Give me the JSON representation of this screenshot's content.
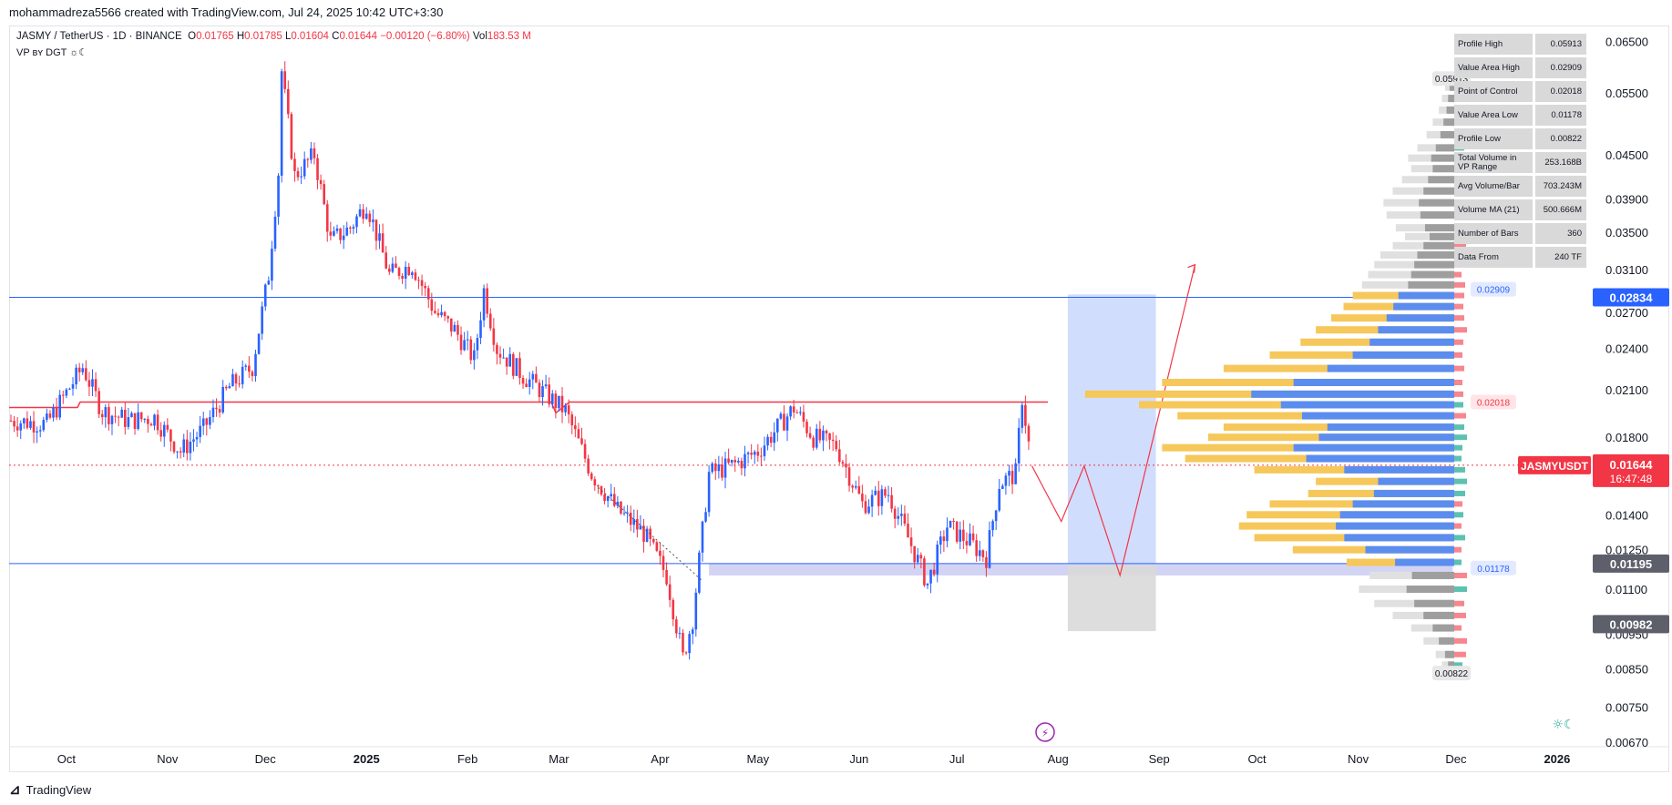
{
  "header": {
    "created_by": "mohammadreza5566 created with TradingView.com, Jul 24, 2025 10:42 UTC+3:30"
  },
  "legend": {
    "symbol": "JASMY / TetherUS · 1D · BINANCE",
    "o_label": "O",
    "o": "0.01765",
    "h_label": "H",
    "h": "0.01785",
    "l_label": "L",
    "l": "0.01604",
    "c_label": "C",
    "c": "0.01644",
    "change": "−0.00120 (−6.80%)",
    "vol_label": "Vol",
    "vol": "183.53 M",
    "indicator": "VP ʙʏ DGT ☼☾"
  },
  "stats_table": [
    {
      "key": "Profile High",
      "value": "0.05913"
    },
    {
      "key": "Value Area High",
      "value": "0.02909"
    },
    {
      "key": "Point of Control",
      "value": "0.02018"
    },
    {
      "key": "Value Area Low",
      "value": "0.01178"
    },
    {
      "key": "Profile Low",
      "value": "0.00822"
    },
    {
      "key": "Total Volume in VP Range",
      "value": "253.168B"
    },
    {
      "key": "Avg Volume/Bar",
      "value": "703.243M"
    },
    {
      "key": "Volume MA (21)",
      "value": "500.666M"
    },
    {
      "key": "Number of Bars",
      "value": "360"
    },
    {
      "key": "Data From",
      "value": "240 TF"
    }
  ],
  "footer": {
    "brand": "TradingView"
  },
  "colors": {
    "up": "#2962ff",
    "down": "#f23645",
    "accent": "#2962ff",
    "profile_value_area": "#5b8def",
    "profile_outside": "#9e9e9e",
    "profile_yellow": "#f6c75a",
    "projection_box": "#c9d7fb",
    "support_band": "#c4c6f0"
  },
  "chart_data": {
    "type": "candlestick",
    "symbol": "JASMYUSDT",
    "x_ticks": [
      "Oct",
      "Nov",
      "Dec",
      "2025",
      "Feb",
      "Mar",
      "Apr",
      "May",
      "Jun",
      "Jul",
      "Aug",
      "Sep",
      "Oct",
      "Nov",
      "Dec",
      "2026"
    ],
    "y_scale": "log",
    "y_ticks": [
      "0.06500",
      "0.05500",
      "0.04500",
      "0.03900",
      "0.03500",
      "0.03100",
      "0.02700",
      "0.02400",
      "0.02100",
      "0.01800",
      "0.01400",
      "0.01250",
      "0.01100",
      "0.00950",
      "0.00850",
      "0.00750",
      "0.00670"
    ],
    "ylim": [
      0.0066,
      0.068
    ],
    "price_path": [
      {
        "date": "2024-09-14",
        "close": 0.019
      },
      {
        "date": "2024-09-25",
        "close": 0.0188
      },
      {
        "date": "2024-10-01",
        "close": 0.0208
      },
      {
        "date": "2024-10-06",
        "close": 0.0226
      },
      {
        "date": "2024-10-12",
        "close": 0.0196
      },
      {
        "date": "2024-10-20",
        "close": 0.019
      },
      {
        "date": "2024-10-28",
        "close": 0.0192
      },
      {
        "date": "2024-11-05",
        "close": 0.0172
      },
      {
        "date": "2024-11-12",
        "close": 0.0185
      },
      {
        "date": "2024-11-20",
        "close": 0.0212
      },
      {
        "date": "2024-11-27",
        "close": 0.0226
      },
      {
        "date": "2024-12-02",
        "close": 0.0305
      },
      {
        "date": "2024-12-05",
        "close": 0.0425
      },
      {
        "date": "2024-12-06",
        "close": 0.059
      },
      {
        "date": "2024-12-10",
        "close": 0.042
      },
      {
        "date": "2024-12-16",
        "close": 0.045
      },
      {
        "date": "2024-12-21",
        "close": 0.034
      },
      {
        "date": "2024-12-27",
        "close": 0.0355
      },
      {
        "date": "2025-01-01",
        "close": 0.0385
      },
      {
        "date": "2025-01-08",
        "close": 0.0305
      },
      {
        "date": "2025-01-15",
        "close": 0.0315
      },
      {
        "date": "2025-01-22",
        "close": 0.027
      },
      {
        "date": "2025-01-28",
        "close": 0.0255
      },
      {
        "date": "2025-02-03",
        "close": 0.0232
      },
      {
        "date": "2025-02-06",
        "close": 0.029
      },
      {
        "date": "2025-02-10",
        "close": 0.024
      },
      {
        "date": "2025-02-18",
        "close": 0.022
      },
      {
        "date": "2025-02-26",
        "close": 0.0205
      },
      {
        "date": "2025-03-03",
        "close": 0.0196
      },
      {
        "date": "2025-03-11",
        "close": 0.016
      },
      {
        "date": "2025-03-19",
        "close": 0.0142
      },
      {
        "date": "2025-03-27",
        "close": 0.0132
      },
      {
        "date": "2025-04-03",
        "close": 0.0115
      },
      {
        "date": "2025-04-08",
        "close": 0.0088
      },
      {
        "date": "2025-04-11",
        "close": 0.01
      },
      {
        "date": "2025-04-16",
        "close": 0.016
      },
      {
        "date": "2025-04-24",
        "close": 0.0165
      },
      {
        "date": "2025-05-01",
        "close": 0.0172
      },
      {
        "date": "2025-05-08",
        "close": 0.0188
      },
      {
        "date": "2025-05-12",
        "close": 0.0198
      },
      {
        "date": "2025-05-18",
        "close": 0.018
      },
      {
        "date": "2025-05-25",
        "close": 0.0175
      },
      {
        "date": "2025-06-02",
        "close": 0.0145
      },
      {
        "date": "2025-06-10",
        "close": 0.015
      },
      {
        "date": "2025-06-16",
        "close": 0.013
      },
      {
        "date": "2025-06-22",
        "close": 0.0112
      },
      {
        "date": "2025-06-28",
        "close": 0.0135
      },
      {
        "date": "2025-07-05",
        "close": 0.0128
      },
      {
        "date": "2025-07-10",
        "close": 0.0122
      },
      {
        "date": "2025-07-14",
        "close": 0.0155
      },
      {
        "date": "2025-07-19",
        "close": 0.016
      },
      {
        "date": "2025-07-21",
        "close": 0.0205
      },
      {
        "date": "2025-07-23",
        "close": 0.0176
      },
      {
        "date": "2025-07-24",
        "close": 0.0164
      }
    ],
    "last_price": "0.01644",
    "last_price_symbol": "JASMYUSDT",
    "countdown": "16:47:48",
    "horizontal_levels": [
      {
        "name": "resistance",
        "value": 0.02834,
        "label": "0.02834"
      },
      {
        "name": "support",
        "value": 0.01195,
        "label": "0.01195"
      },
      {
        "name": "marker",
        "value": 0.00982,
        "label": "0.00982"
      }
    ],
    "poc_level": {
      "value": 0.02018,
      "label": "0.02018"
    },
    "vah_label": "0.02909",
    "val_label": "0.01178",
    "profile_high_label": "0.05913",
    "profile_low_label": "0.00822",
    "projection_path": [
      {
        "date": "2025-07-24",
        "price": 0.0164
      },
      {
        "date": "2025-08-02",
        "price": 0.0137
      },
      {
        "date": "2025-08-09",
        "price": 0.0164
      },
      {
        "date": "2025-08-20",
        "price": 0.0115
      },
      {
        "date": "2025-09-12",
        "price": 0.0315
      }
    ],
    "projection_box": {
      "from": "2025-08-04",
      "to": "2025-08-31",
      "top": 0.0286,
      "mid": 0.0119,
      "bottom": 0.0096
    },
    "support_zone": {
      "from": "2025-04-16",
      "to": "2025-11-30",
      "top": 0.01195,
      "bottom": 0.0115
    },
    "volume_profile": [
      {
        "price": 0.058,
        "vol": 4
      },
      {
        "price": 0.056,
        "vol": 6
      },
      {
        "price": 0.054,
        "vol": 8
      },
      {
        "price": 0.052,
        "vol": 10
      },
      {
        "price": 0.05,
        "vol": 14
      },
      {
        "price": 0.048,
        "vol": 18
      },
      {
        "price": 0.046,
        "vol": 24
      },
      {
        "price": 0.0445,
        "vol": 30
      },
      {
        "price": 0.043,
        "vol": 28
      },
      {
        "price": 0.0415,
        "vol": 34
      },
      {
        "price": 0.04,
        "vol": 40
      },
      {
        "price": 0.0385,
        "vol": 46
      },
      {
        "price": 0.037,
        "vol": 44
      },
      {
        "price": 0.0355,
        "vol": 38
      },
      {
        "price": 0.0345,
        "vol": 32
      },
      {
        "price": 0.0335,
        "vol": 40
      },
      {
        "price": 0.0325,
        "vol": 48
      },
      {
        "price": 0.0315,
        "vol": 52
      },
      {
        "price": 0.0305,
        "vol": 56
      },
      {
        "price": 0.0295,
        "vol": 60
      },
      {
        "price": 0.0285,
        "vol": 66
      },
      {
        "price": 0.0275,
        "vol": 72
      },
      {
        "price": 0.0265,
        "vol": 80
      },
      {
        "price": 0.0255,
        "vol": 90
      },
      {
        "price": 0.0245,
        "vol": 100
      },
      {
        "price": 0.0235,
        "vol": 120
      },
      {
        "price": 0.0225,
        "vol": 150
      },
      {
        "price": 0.0215,
        "vol": 190
      },
      {
        "price": 0.0207,
        "vol": 240
      },
      {
        "price": 0.02,
        "vol": 205
      },
      {
        "price": 0.0193,
        "vol": 180
      },
      {
        "price": 0.0186,
        "vol": 150
      },
      {
        "price": 0.018,
        "vol": 160
      },
      {
        "price": 0.0174,
        "vol": 190
      },
      {
        "price": 0.0168,
        "vol": 175
      },
      {
        "price": 0.0162,
        "vol": 130
      },
      {
        "price": 0.0156,
        "vol": 90
      },
      {
        "price": 0.015,
        "vol": 95
      },
      {
        "price": 0.0145,
        "vol": 120
      },
      {
        "price": 0.014,
        "vol": 135
      },
      {
        "price": 0.0135,
        "vol": 140
      },
      {
        "price": 0.013,
        "vol": 130
      },
      {
        "price": 0.0125,
        "vol": 105
      },
      {
        "price": 0.012,
        "vol": 70
      },
      {
        "price": 0.0115,
        "vol": 55
      },
      {
        "price": 0.011,
        "vol": 62
      },
      {
        "price": 0.0105,
        "vol": 52
      },
      {
        "price": 0.0101,
        "vol": 40
      },
      {
        "price": 0.0097,
        "vol": 28
      },
      {
        "price": 0.0093,
        "vol": 20
      },
      {
        "price": 0.0089,
        "vol": 12
      },
      {
        "price": 0.0086,
        "vol": 8
      },
      {
        "price": 0.0083,
        "vol": 6
      }
    ]
  }
}
